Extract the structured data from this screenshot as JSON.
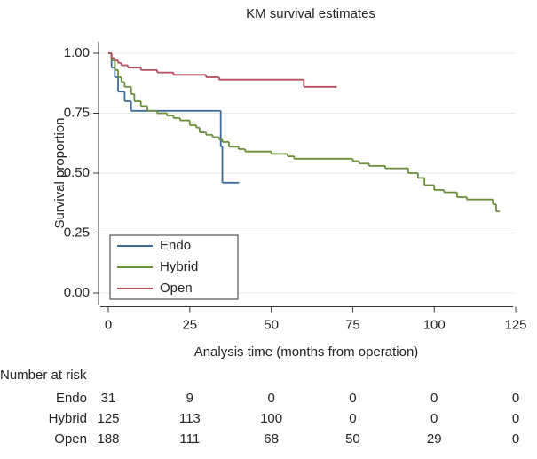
{
  "chart_data": {
    "type": "step",
    "title": "KM survival estimates",
    "x_label": "Analysis time (months from operation)",
    "y_label": "Survival proportion",
    "xlim": [
      -3,
      125
    ],
    "xticks": [
      0,
      25,
      50,
      75,
      100,
      125
    ],
    "ylim": [
      -0.05,
      1.05
    ],
    "yticks": [
      {
        "value": 0,
        "label": "0.00"
      },
      {
        "value": 0.25,
        "label": "0.25"
      },
      {
        "value": 0.5,
        "label": "0.50"
      },
      {
        "value": 0.75,
        "label": "0.75"
      },
      {
        "value": 1,
        "label": "1.00"
      }
    ],
    "grid": true,
    "legend": "lower left",
    "series": [
      {
        "name": "Endo",
        "color": "#3f6d9b",
        "x": [
          0,
          1,
          2,
          3,
          5,
          7,
          34,
          34.5,
          35,
          40
        ],
        "values": [
          1.0,
          0.94,
          0.9,
          0.84,
          0.8,
          0.76,
          0.76,
          0.61,
          0.46,
          0.46
        ]
      },
      {
        "name": "Hybrid",
        "color": "#6a8e3c",
        "x": [
          0,
          1,
          2,
          3,
          4,
          5,
          7,
          8,
          10,
          12,
          15,
          18,
          20,
          22,
          25,
          27,
          28,
          30,
          32,
          34,
          35,
          37,
          40,
          42,
          50,
          55,
          57,
          75,
          77,
          80,
          85,
          92,
          95,
          97,
          100,
          103,
          107,
          110,
          118,
          119,
          120
        ],
        "values": [
          1.0,
          0.97,
          0.93,
          0.9,
          0.88,
          0.86,
          0.83,
          0.8,
          0.78,
          0.76,
          0.75,
          0.74,
          0.73,
          0.72,
          0.7,
          0.69,
          0.67,
          0.66,
          0.65,
          0.64,
          0.63,
          0.61,
          0.6,
          0.59,
          0.58,
          0.57,
          0.56,
          0.55,
          0.54,
          0.53,
          0.52,
          0.5,
          0.48,
          0.45,
          0.43,
          0.42,
          0.4,
          0.39,
          0.37,
          0.34,
          0.34
        ]
      },
      {
        "name": "Open",
        "color": "#b24f5d",
        "x": [
          0,
          1,
          2,
          3,
          4,
          6,
          10,
          15,
          20,
          30,
          34,
          60,
          70
        ],
        "values": [
          1.0,
          0.98,
          0.97,
          0.96,
          0.95,
          0.94,
          0.93,
          0.92,
          0.91,
          0.9,
          0.89,
          0.86,
          0.86
        ]
      }
    ],
    "risk_table": {
      "title": "Number at risk",
      "rows": [
        {
          "name": "Endo",
          "values": [
            31,
            9,
            0,
            0,
            0,
            0
          ]
        },
        {
          "name": "Hybrid",
          "values": [
            125,
            113,
            100,
            0,
            0,
            0
          ]
        },
        {
          "name": "Open",
          "values": [
            188,
            111,
            68,
            50,
            29,
            0
          ]
        }
      ]
    }
  }
}
